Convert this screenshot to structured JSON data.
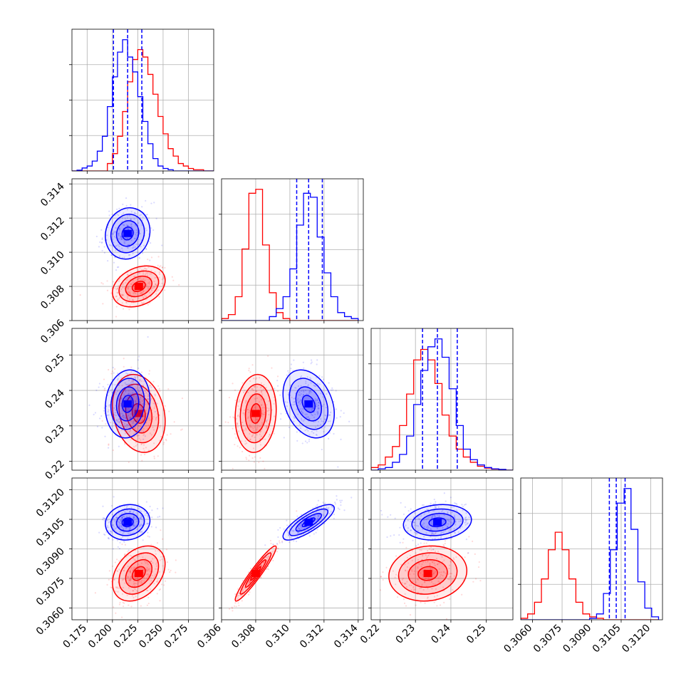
{
  "figure": {
    "type": "corner-plot",
    "colors": {
      "series_a": "#0000ff",
      "series_b": "#ff0000",
      "grid": "#b0b0b0"
    },
    "parameters": [
      {
        "id": "p0",
        "range": [
          0.16,
          0.3
        ],
        "ticks": [
          "0.175",
          "0.200",
          "0.225",
          "0.250",
          "0.275"
        ],
        "tick_values": [
          0.175,
          0.2,
          0.225,
          0.25,
          0.275
        ]
      },
      {
        "id": "p1",
        "range": [
          0.306,
          0.3143
        ],
        "ticks": [
          "0.306",
          "0.308",
          "0.310",
          "0.312",
          "0.314"
        ],
        "tick_values": [
          0.306,
          0.308,
          0.31,
          0.312,
          0.314
        ]
      },
      {
        "id": "p2",
        "range": [
          0.2175,
          0.2575
        ],
        "ticks": [
          "0.22",
          "0.23",
          "0.24",
          "0.25"
        ],
        "tick_values": [
          0.22,
          0.23,
          0.24,
          0.25
        ]
      },
      {
        "id": "p3",
        "range": [
          0.3054,
          0.3126
        ],
        "ticks": [
          "0.3060",
          "0.3075",
          "0.3090",
          "0.3105",
          "0.3120"
        ],
        "tick_values": [
          0.306,
          0.3075,
          0.309,
          0.3105,
          0.312
        ]
      }
    ]
  },
  "chart_data": {
    "type": "corner",
    "series": [
      {
        "name": "",
        "color": "#0000ff",
        "means": [
          0.215,
          0.3111,
          0.2362,
          0.31035
        ],
        "sigmas": [
          0.011,
          0.00075,
          0.0048,
          0.00045
        ],
        "quantiles": [
          [
            0.201,
            0.215,
            0.229
          ],
          [
            0.3104,
            0.3111,
            0.3119
          ],
          [
            0.232,
            0.2362,
            0.2418
          ],
          [
            0.3099,
            0.31025,
            0.3107
          ]
        ]
      },
      {
        "name": "",
        "color": "#ff0000",
        "means": [
          0.226,
          0.308,
          0.2335,
          0.30775
        ],
        "sigmas": [
          0.013,
          0.0006,
          0.0055,
          0.0007
        ],
        "quantiles": []
      }
    ],
    "histograms": [
      {
        "param": "p0",
        "edges": [
          0.16,
          0.165,
          0.17,
          0.175,
          0.18,
          0.185,
          0.19,
          0.195,
          0.2,
          0.205,
          0.21,
          0.215,
          0.22,
          0.225,
          0.23,
          0.235,
          0.24,
          0.245,
          0.25,
          0.255,
          0.26,
          0.265,
          0.27,
          0.275,
          0.28,
          0.285,
          0.29,
          0.295,
          0.3
        ],
        "series_a": [
          0,
          0.3,
          1.2,
          2,
          4,
          8,
          14,
          26,
          38,
          48,
          53,
          46,
          40,
          30,
          20,
          11,
          5,
          2,
          1,
          0.5,
          0,
          0,
          0,
          0,
          0,
          0,
          0,
          0
        ],
        "series_b": [
          0,
          0,
          0,
          0,
          0,
          0,
          0,
          3,
          7,
          14,
          24,
          36,
          45,
          49,
          46,
          39,
          31,
          22,
          15,
          9,
          6,
          3,
          2,
          1,
          0.5,
          0.5,
          0,
          0
        ]
      },
      {
        "param": "p1",
        "edges": [
          0.306,
          0.3064,
          0.3068,
          0.3072,
          0.3076,
          0.308,
          0.3084,
          0.3088,
          0.3092,
          0.3096,
          0.31,
          0.3104,
          0.3108,
          0.3112,
          0.3116,
          0.312,
          0.3124,
          0.3128,
          0.3132,
          0.3136,
          0.314
        ],
        "series_a": [
          0,
          0,
          0,
          0,
          0,
          0,
          0,
          1,
          3,
          6,
          13,
          24,
          32,
          31,
          21,
          12,
          6,
          2,
          1,
          0.5
        ],
        "series_b": [
          0.5,
          1.5,
          6,
          18,
          32,
          33,
          19,
          7,
          2,
          0.5,
          0,
          0,
          0,
          0,
          0,
          0,
          0,
          0,
          0,
          0
        ]
      },
      {
        "param": "p2",
        "edges": [
          0.2175,
          0.2195,
          0.2215,
          0.2235,
          0.2255,
          0.2275,
          0.2295,
          0.2315,
          0.2335,
          0.2355,
          0.2375,
          0.2395,
          0.2415,
          0.2435,
          0.2455,
          0.2475,
          0.2495,
          0.2515,
          0.2535,
          0.2555,
          0.2575
        ],
        "series_a": [
          0,
          0.5,
          1,
          3,
          6,
          13,
          25,
          38,
          47,
          50,
          43,
          31,
          17,
          8,
          4,
          2,
          1,
          0.5,
          0.3,
          0
        ],
        "series_b": [
          1,
          2,
          5,
          9,
          17,
          29,
          42,
          46,
          42,
          33,
          21,
          13,
          8,
          5,
          3,
          1.5,
          0.8,
          0.4,
          0.2,
          0
        ]
      },
      {
        "param": "p3",
        "edges": [
          0.3054,
          0.30575,
          0.3061,
          0.30645,
          0.3068,
          0.30715,
          0.3075,
          0.30785,
          0.3082,
          0.30855,
          0.3089,
          0.30925,
          0.3096,
          0.30995,
          0.3103,
          0.31065,
          0.311,
          0.31135,
          0.3117,
          0.31205,
          0.3124
        ],
        "series_a": [
          0,
          0,
          0,
          0,
          0,
          0,
          0,
          0,
          0,
          0,
          0.5,
          2,
          9,
          24,
          40,
          45,
          31,
          13,
          4,
          1
        ],
        "series_b": [
          0.5,
          2,
          6,
          14,
          24,
          30,
          24,
          14,
          6,
          2,
          1,
          0.5,
          0,
          0,
          0,
          0,
          0,
          0,
          0,
          0
        ]
      }
    ],
    "panels_2d": [
      {
        "x": "p0",
        "y": "p1",
        "rho_a": 0.1,
        "rho_b": 0.3
      },
      {
        "x": "p0",
        "y": "p2",
        "rho_a": 0.1,
        "rho_b": -0.2
      },
      {
        "x": "p1",
        "y": "p2",
        "rho_a": -0.3,
        "rho_b": 0.1
      },
      {
        "x": "p0",
        "y": "p3",
        "rho_a": 0.1,
        "rho_b": 0.35
      },
      {
        "x": "p1",
        "y": "p3",
        "rho_a": 0.8,
        "rho_b": 0.95
      },
      {
        "x": "p2",
        "y": "p3",
        "rho_a": 0.15,
        "rho_b": 0.1
      }
    ],
    "contour_levels_sigma": [
      0.5,
      1.0,
      1.5,
      2.0
    ],
    "grid": true
  }
}
